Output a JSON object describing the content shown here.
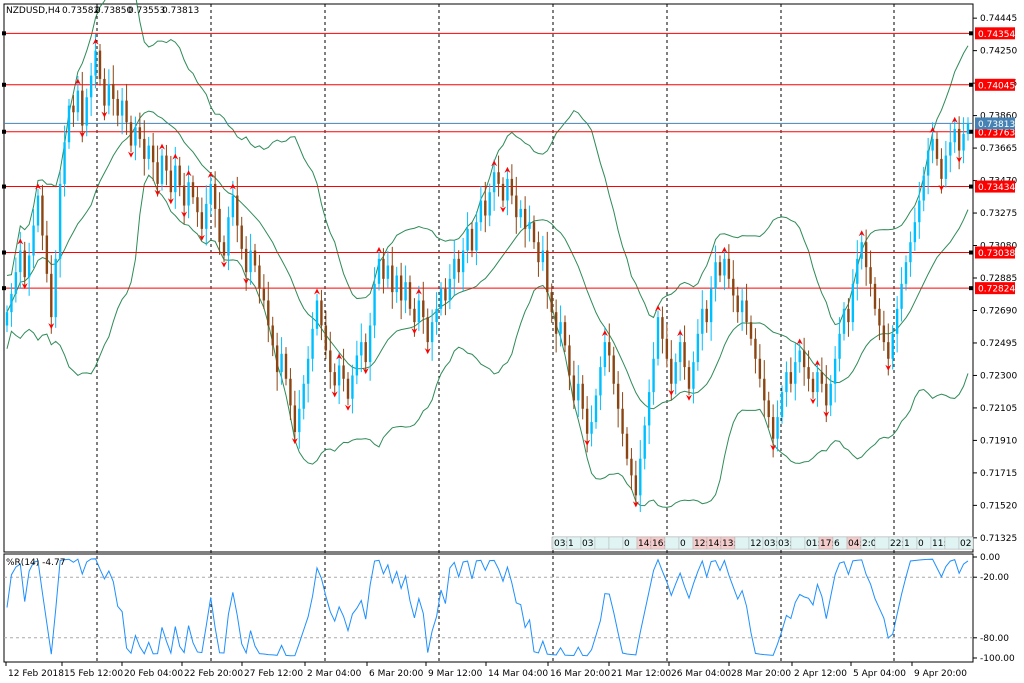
{
  "header": {
    "symbol": "NZDUSD,H4",
    "open": "0.73582",
    "high": "0.73850",
    "low": "0.73553",
    "close": "0.73813"
  },
  "price_axis": {
    "min": 0.7124,
    "max": 0.7453,
    "ticks": [
      "0.74445",
      "0.74250",
      "0.74055",
      "0.73860",
      "0.73665",
      "0.73470",
      "0.73275",
      "0.73080",
      "0.72885",
      "0.72690",
      "0.72495",
      "0.72300",
      "0.72105",
      "0.71910",
      "0.71715",
      "0.71520",
      "0.71325"
    ]
  },
  "levels": [
    {
      "price": 0.74354,
      "label": "0.74354"
    },
    {
      "price": 0.74045,
      "label": "0.74045"
    },
    {
      "price": 0.73763,
      "label": "0.73763"
    },
    {
      "price": 0.73434,
      "label": "0.73434"
    },
    {
      "price": 0.73038,
      "label": "0.73038"
    },
    {
      "price": 0.72824,
      "label": "0.72824"
    }
  ],
  "current_price": {
    "price": 0.73813,
    "label": "0.73813"
  },
  "time_axis": [
    "12 Feb 2018",
    "15 Feb 12:00",
    "20 Feb 04:00",
    "22 Feb 20:00",
    "27 Feb 12:00",
    "2 Mar 04:00",
    "6 Mar 20:00",
    "9 Mar 12:00",
    "14 Mar 04:00",
    "16 Mar 20:00",
    "21 Mar 12:00",
    "26 Mar 04:00",
    "28 Mar 20:00",
    "2 Apr 12:00",
    "5 Apr 04:00",
    "9 Apr 20:00"
  ],
  "session_labels": [
    "03:",
    "1",
    "03",
    "",
    "",
    "0",
    "14:00",
    "16:4",
    "",
    "0",
    "12:30",
    "14:00",
    "13:0",
    "",
    "12",
    "03:00",
    "03:",
    "",
    "01:",
    "17:20",
    "6",
    "04:00",
    "2:0",
    "",
    "22:3",
    "1",
    "0",
    "11:30",
    "",
    "02"
  ],
  "indicator": {
    "title": "%R(14) -4.77",
    "ticks": [
      "0.00",
      "-20.00",
      "-80.00",
      "-100.00"
    ]
  },
  "colors": {
    "bull": "#00bfff",
    "bear": "#8b4513",
    "band": "#2e8b57",
    "level": "#ff0000",
    "current": "#4682b4",
    "wpr": "#1e90ff",
    "fractal": "#ff0000"
  },
  "chart_data": {
    "type": "candlestick",
    "close_series": [
      0.7268,
      0.7279,
      0.7292,
      0.7305,
      0.7289,
      0.7302,
      0.732,
      0.7338,
      0.7314,
      0.7291,
      0.7265,
      0.73,
      0.7345,
      0.737,
      0.7392,
      0.7388,
      0.7401,
      0.738,
      0.7397,
      0.741,
      0.7425,
      0.7408,
      0.7392,
      0.7405,
      0.7396,
      0.7386,
      0.7395,
      0.7382,
      0.7368,
      0.7379,
      0.7372,
      0.736,
      0.7368,
      0.7358,
      0.7345,
      0.7362,
      0.7353,
      0.734,
      0.7356,
      0.7344,
      0.7332,
      0.7346,
      0.7337,
      0.7328,
      0.7318,
      0.7333,
      0.7345,
      0.733,
      0.731,
      0.7302,
      0.7325,
      0.7338,
      0.732,
      0.7306,
      0.7292,
      0.7305,
      0.7296,
      0.7282,
      0.7275,
      0.726,
      0.7248,
      0.7232,
      0.7243,
      0.7228,
      0.7212,
      0.7196,
      0.721,
      0.7225,
      0.724,
      0.7258,
      0.7275,
      0.726,
      0.7245,
      0.7232,
      0.7224,
      0.7236,
      0.7228,
      0.7216,
      0.723,
      0.7242,
      0.725,
      0.7238,
      0.726,
      0.7285,
      0.73,
      0.7288,
      0.7296,
      0.728,
      0.729,
      0.7275,
      0.7286,
      0.727,
      0.7262,
      0.7275,
      0.7265,
      0.725,
      0.7262,
      0.727,
      0.7282,
      0.7275,
      0.7288,
      0.73,
      0.7292,
      0.7305,
      0.7318,
      0.7305,
      0.7322,
      0.7335,
      0.7326,
      0.734,
      0.7352,
      0.7345,
      0.7335,
      0.7348,
      0.7338,
      0.7325,
      0.733,
      0.7318,
      0.7322,
      0.731,
      0.7298,
      0.7305,
      0.728,
      0.7268,
      0.7255,
      0.7262,
      0.7248,
      0.723,
      0.7215,
      0.7225,
      0.721,
      0.7195,
      0.7202,
      0.7218,
      0.7235,
      0.725,
      0.7242,
      0.7225,
      0.721,
      0.7195,
      0.718,
      0.717,
      0.7158,
      0.718,
      0.72,
      0.722,
      0.724,
      0.7265,
      0.7252,
      0.724,
      0.7225,
      0.7238,
      0.725,
      0.7235,
      0.7222,
      0.7238,
      0.7255,
      0.727,
      0.7262,
      0.7282,
      0.7298,
      0.729,
      0.73,
      0.7288,
      0.7278,
      0.7268,
      0.7275,
      0.7262,
      0.7252,
      0.724,
      0.7228,
      0.7215,
      0.7205,
      0.7192,
      0.7205,
      0.722,
      0.7232,
      0.7225,
      0.7238,
      0.7245,
      0.7235,
      0.7228,
      0.722,
      0.7232,
      0.7225,
      0.7212,
      0.7225,
      0.724,
      0.7255,
      0.727,
      0.7262,
      0.7285,
      0.73,
      0.731,
      0.7295,
      0.7285,
      0.727,
      0.726,
      0.725,
      0.724,
      0.7255,
      0.727,
      0.7285,
      0.7298,
      0.731,
      0.7322,
      0.7335,
      0.735,
      0.7365,
      0.7372,
      0.736,
      0.7348,
      0.7362,
      0.737,
      0.7378,
      0.7365,
      0.7375,
      0.7381
    ]
  }
}
